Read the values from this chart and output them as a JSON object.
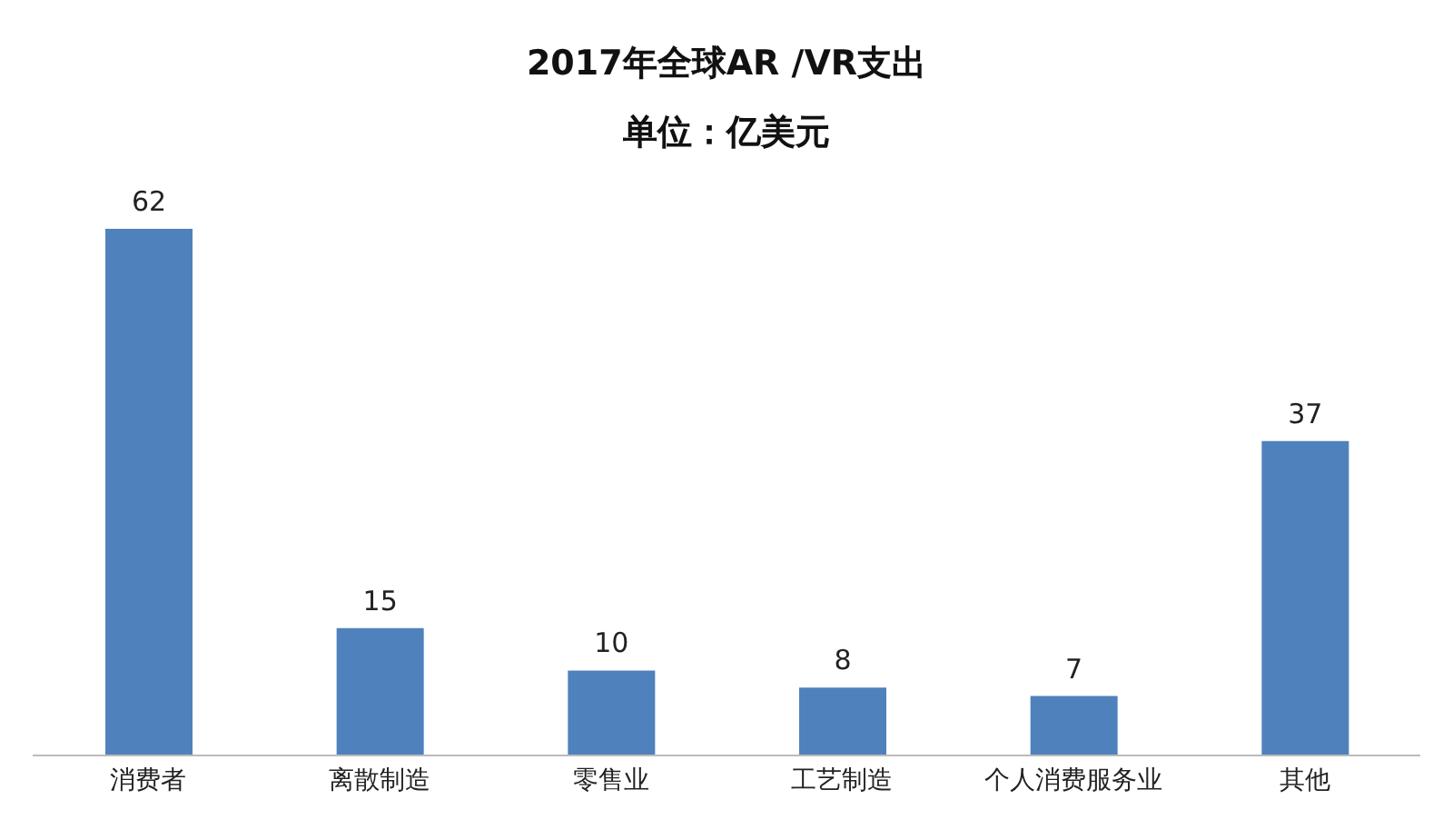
{
  "chart_data": {
    "type": "bar",
    "title": "2017年全球AR /VR支出",
    "subtitle": "单位：亿美元",
    "categories": [
      "消费者",
      "离散制造",
      "零售业",
      "工艺制造",
      "个人消费服务业",
      "其他"
    ],
    "values": [
      62,
      15,
      10,
      8,
      7,
      37
    ],
    "color": "#4f81bd",
    "data_labels": true,
    "grid": false,
    "legend": false
  }
}
